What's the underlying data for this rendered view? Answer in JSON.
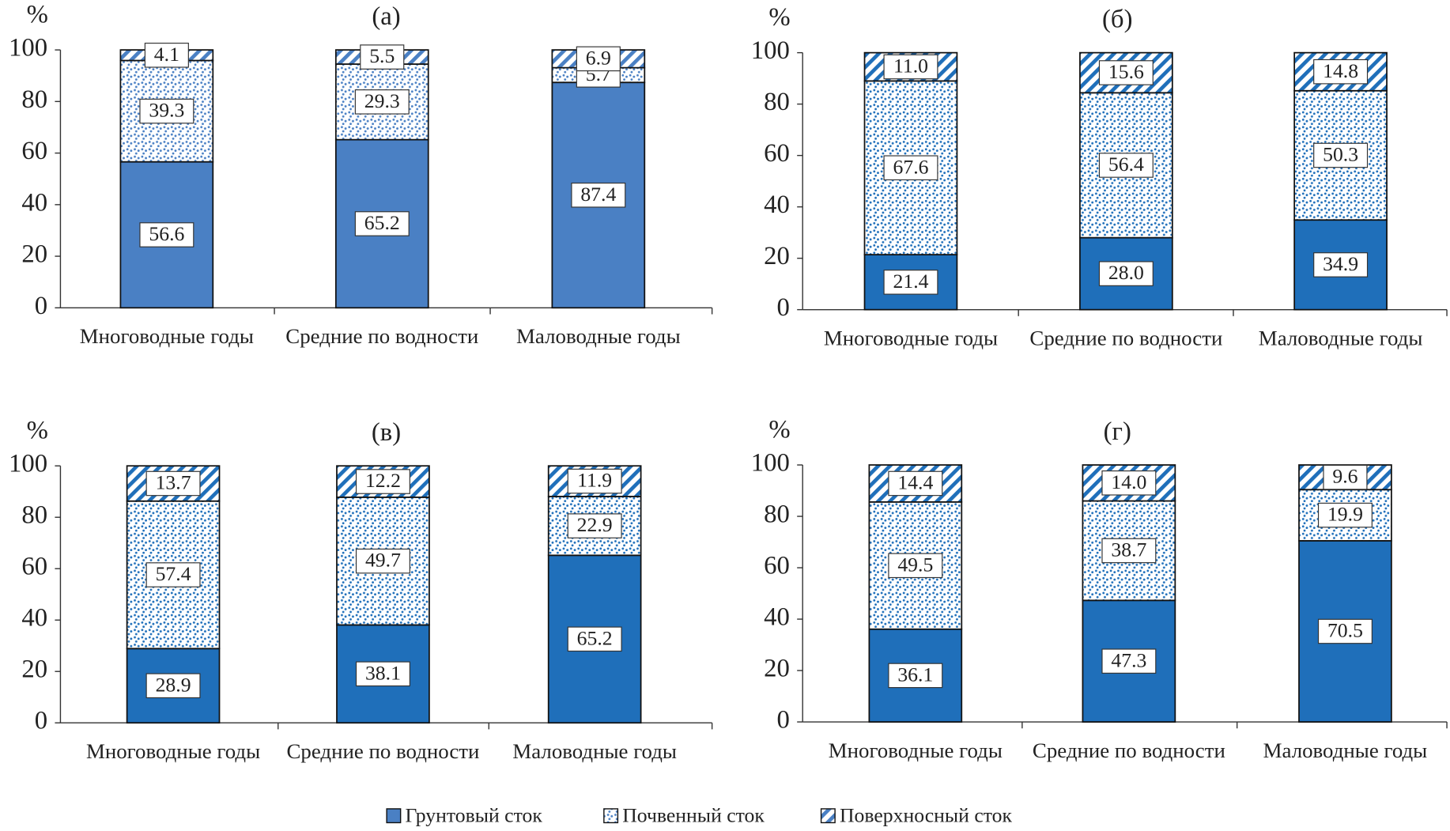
{
  "chart_data": [
    {
      "type": "bar",
      "stacked": true,
      "title": "(а)",
      "y_label": "%",
      "categories": [
        "Многоводные годы",
        "Средние по водности",
        "Маловодные годы"
      ],
      "ylim": [
        0,
        100
      ],
      "yticks": [
        0,
        20,
        40,
        60,
        80,
        100
      ],
      "series": [
        {
          "name": "Грунтовый сток",
          "color": "#4a80c4",
          "pattern": "solid",
          "values": [
            56.6,
            65.2,
            87.4
          ],
          "value_labels": [
            "56.6",
            "65.2",
            "87.4"
          ]
        },
        {
          "name": "Почвенный сток",
          "color": "#4a80c4",
          "pattern": "dots",
          "values": [
            39.3,
            29.3,
            5.7
          ],
          "value_labels": [
            "39.3",
            "29.3",
            "5.7"
          ]
        },
        {
          "name": "Поверхносный сток",
          "color": "#4a80c4",
          "pattern": "hatch",
          "values": [
            4.1,
            5.5,
            6.9
          ],
          "value_labels": [
            "4.1",
            "5.5",
            "6.9"
          ]
        }
      ]
    },
    {
      "type": "bar",
      "stacked": true,
      "title": "(б)",
      "y_label": "%",
      "categories": [
        "Многоводные годы",
        "Средние по водности",
        "Маловодные годы"
      ],
      "ylim": [
        0,
        100
      ],
      "yticks": [
        0,
        20,
        40,
        60,
        80,
        100
      ],
      "series": [
        {
          "name": "Грунтовый сток",
          "color": "#1f6fba",
          "pattern": "solid",
          "values": [
            21.4,
            28.0,
            34.9
          ],
          "value_labels": [
            "21.4",
            "28.0",
            "34.9"
          ]
        },
        {
          "name": "Почвенный сток",
          "color": "#1f6fba",
          "pattern": "dots",
          "values": [
            67.6,
            56.4,
            50.3
          ],
          "value_labels": [
            "67.6",
            "56.4",
            "50.3"
          ]
        },
        {
          "name": "Поверхносный сток",
          "color": "#1f6fba",
          "pattern": "hatch",
          "values": [
            11.0,
            15.6,
            14.8
          ],
          "value_labels": [
            "11.0",
            "15.6",
            "14.8"
          ]
        }
      ]
    },
    {
      "type": "bar",
      "stacked": true,
      "title": "(в)",
      "y_label": "%",
      "categories": [
        "Многоводные годы",
        "Средние по водности",
        "Маловодные годы"
      ],
      "ylim": [
        0,
        100
      ],
      "yticks": [
        0,
        20,
        40,
        60,
        80,
        100
      ],
      "series": [
        {
          "name": "Грунтовый сток",
          "color": "#1f6fba",
          "pattern": "solid",
          "values": [
            28.9,
            38.1,
            65.2
          ],
          "value_labels": [
            "28.9",
            "38.1",
            "65.2"
          ]
        },
        {
          "name": "Почвенный сток",
          "color": "#1f6fba",
          "pattern": "dots",
          "values": [
            57.4,
            49.7,
            22.9
          ],
          "value_labels": [
            "57.4",
            "49.7",
            "22.9"
          ]
        },
        {
          "name": "Поверхносный сток",
          "color": "#1f6fba",
          "pattern": "hatch",
          "values": [
            13.7,
            12.2,
            11.9
          ],
          "value_labels": [
            "13.7",
            "12.2",
            "11.9"
          ]
        }
      ]
    },
    {
      "type": "bar",
      "stacked": true,
      "title": "(г)",
      "y_label": "%",
      "categories": [
        "Многоводные годы",
        "Средние по водности",
        "Маловодные годы"
      ],
      "ylim": [
        0,
        100
      ],
      "yticks": [
        0,
        20,
        40,
        60,
        80,
        100
      ],
      "series": [
        {
          "name": "Грунтовый сток",
          "color": "#1f6fba",
          "pattern": "solid",
          "values": [
            36.1,
            47.3,
            70.5
          ],
          "value_labels": [
            "36.1",
            "47.3",
            "70.5"
          ]
        },
        {
          "name": "Почвенный сток",
          "color": "#1f6fba",
          "pattern": "dots",
          "values": [
            49.5,
            38.7,
            19.9
          ],
          "value_labels": [
            "49.5",
            "38.7",
            "19.9"
          ]
        },
        {
          "name": "Поверхносный сток",
          "color": "#1f6fba",
          "pattern": "hatch",
          "values": [
            14.4,
            14.0,
            9.6
          ],
          "value_labels": [
            "14.4",
            "14.0",
            "9.6"
          ]
        }
      ]
    }
  ]
}
